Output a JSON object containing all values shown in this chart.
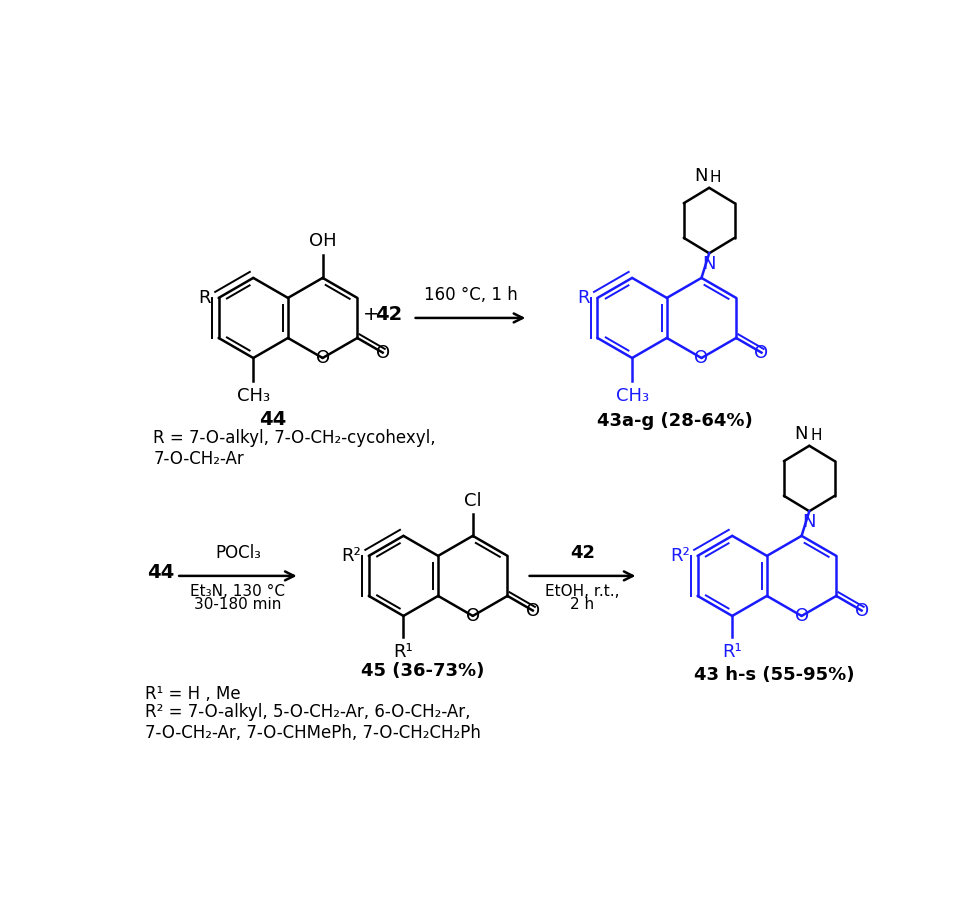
{
  "background_color": "#ffffff",
  "black_color": "#000000",
  "blue_color": "#1a1aff",
  "figure_width": 9.72,
  "figure_height": 9.17,
  "dpi": 100,
  "rxn1": {
    "plus_text": "+ 42",
    "arrow_top": "160 °C, 1 h",
    "reactant_label": "44",
    "product_label": "43a-g (28-64%)",
    "r_annot": "R = 7-O-alkyl, 7-O-CH₂-cycohexyl,\n7-O-CH₂-Ar"
  },
  "rxn2": {
    "reactant_label": "44",
    "arr1_top": "POCl₃",
    "arr1_bot1": "Et₃N, 130 °C",
    "arr1_bot2": "30-180 min",
    "arr2_top": "42",
    "arr2_bot1": "EtOH, r.t.,",
    "arr2_bot2": "2 h",
    "inter_label": "45 (36-73%)",
    "product_label": "43 h-s (55-95%)",
    "r1_annot": "R¹ = H , Me",
    "r2_annot": "R² = 7-O-alkyl, 5-O-CH₂-Ar, 6-O-CH₂-Ar,\n7-O-CH₂-Ar, 7-O-CHMePh, 7-O-CH₂CH₂Ph"
  }
}
